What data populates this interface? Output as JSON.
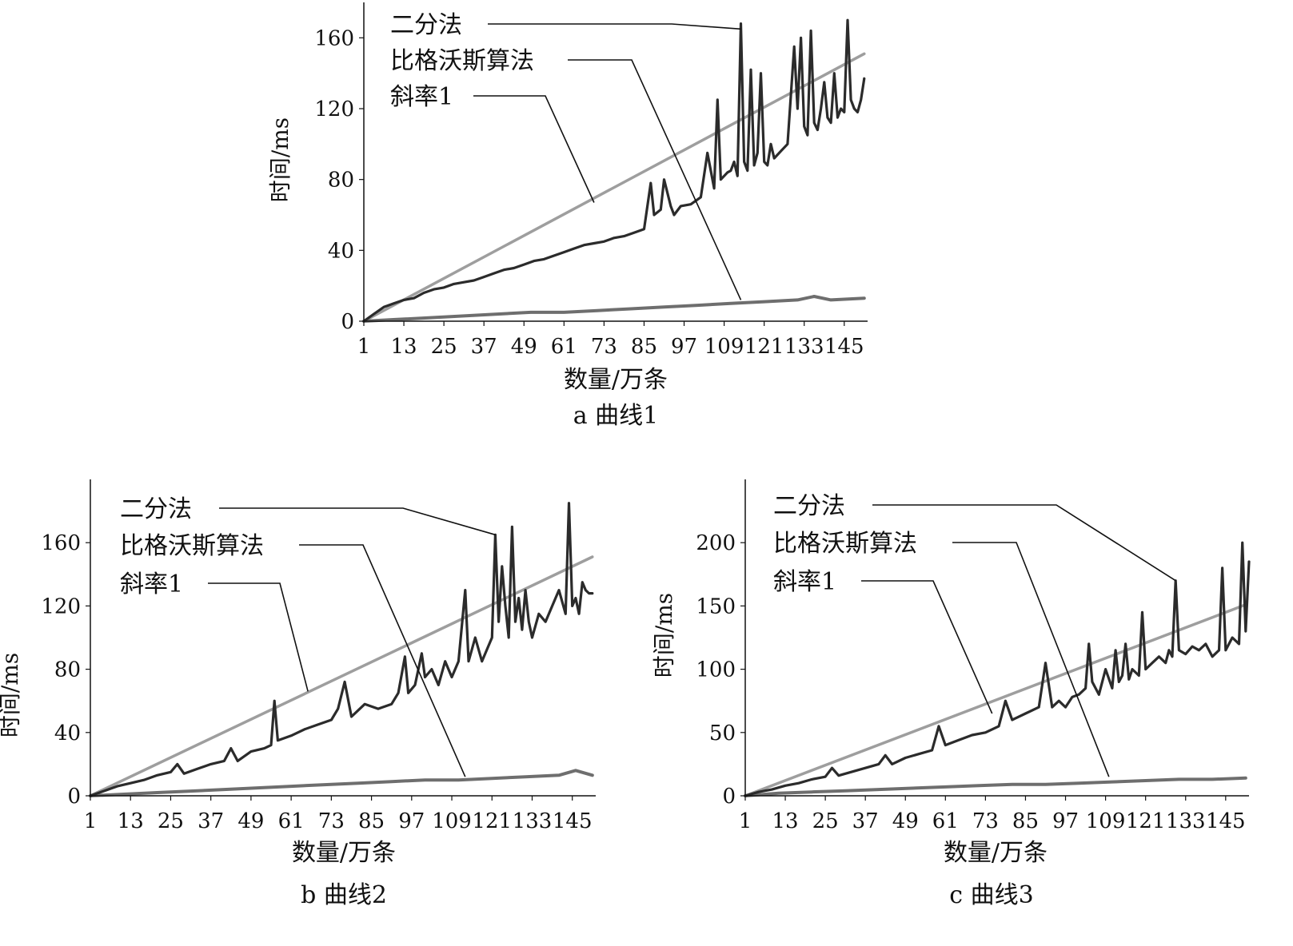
{
  "chart_data": [
    {
      "type": "line",
      "caption": "a 曲线1",
      "xlabel": "数量/万条",
      "ylabel": "时间/ms",
      "xlim": [
        1,
        152
      ],
      "ylim": [
        0,
        180
      ],
      "xticks": [
        1,
        13,
        25,
        37,
        49,
        61,
        73,
        85,
        97,
        109,
        121,
        133,
        145
      ],
      "yticks": [
        0,
        40,
        80,
        120,
        160
      ],
      "grid": false,
      "legend": "callout labels, top-left",
      "legend_entries": [
        {
          "label": "二分法",
          "target": [
            114,
            165
          ]
        },
        {
          "label": "比格沃斯算法",
          "target": [
            114,
            12
          ]
        },
        {
          "label": "斜率1",
          "target": [
            70,
            67
          ]
        }
      ],
      "series": [
        {
          "name": "二分法",
          "color": "#2b2b2b",
          "width": 3.2,
          "x": [
            1,
            4,
            7,
            10,
            13,
            16,
            19,
            22,
            25,
            28,
            31,
            34,
            37,
            40,
            43,
            46,
            49,
            52,
            55,
            58,
            61,
            64,
            67,
            70,
            73,
            76,
            79,
            82,
            85,
            87,
            88,
            90,
            91,
            93,
            94,
            96,
            99,
            102,
            104,
            106,
            107,
            108,
            110,
            111,
            112,
            113,
            114,
            115,
            116,
            117,
            118,
            119,
            120,
            121,
            122,
            123,
            124,
            126,
            128,
            130,
            131,
            132,
            133,
            134,
            135,
            136,
            137,
            138,
            139,
            140,
            141,
            142,
            143,
            144,
            145,
            146,
            147,
            148,
            149,
            150,
            151
          ],
          "y": [
            0,
            4,
            8,
            10,
            12,
            13,
            16,
            18,
            19,
            21,
            22,
            23,
            25,
            27,
            29,
            30,
            32,
            34,
            35,
            37,
            39,
            41,
            43,
            44,
            45,
            47,
            48,
            50,
            52,
            78,
            60,
            63,
            80,
            65,
            60,
            65,
            66,
            70,
            95,
            75,
            125,
            80,
            84,
            85,
            90,
            82,
            168,
            90,
            85,
            142,
            88,
            95,
            140,
            90,
            88,
            100,
            92,
            96,
            100,
            155,
            120,
            160,
            110,
            105,
            164,
            112,
            108,
            120,
            135,
            115,
            112,
            140,
            115,
            120,
            118,
            170,
            125,
            120,
            118,
            125,
            137
          ]
        },
        {
          "name": "比格沃斯算法",
          "color": "#6e6e6e",
          "width": 4,
          "x": [
            1,
            11,
            21,
            31,
            41,
            51,
            61,
            71,
            81,
            91,
            101,
            111,
            121,
            131,
            136,
            141,
            151
          ],
          "y": [
            0,
            1,
            2,
            3,
            4,
            5,
            5,
            6,
            7,
            8,
            9,
            10,
            11,
            12,
            14,
            12,
            13
          ]
        },
        {
          "name": "斜率1",
          "color": "#9e9e9e",
          "width": 3.5,
          "x": [
            1,
            151
          ],
          "y": [
            0,
            151
          ]
        }
      ]
    },
    {
      "type": "line",
      "caption": "b 曲线2",
      "xlabel": "数量/万条",
      "ylabel": "时间/ms",
      "xlim": [
        1,
        152
      ],
      "ylim": [
        0,
        200
      ],
      "xticks": [
        1,
        13,
        25,
        37,
        49,
        61,
        73,
        85,
        97,
        109,
        121,
        133,
        145
      ],
      "yticks": [
        0,
        40,
        80,
        120,
        160
      ],
      "grid": false,
      "legend": "callout labels, top-left",
      "legend_entries": [
        {
          "label": "二分法",
          "target": [
            122,
            165
          ]
        },
        {
          "label": "比格沃斯算法",
          "target": [
            113,
            12
          ]
        },
        {
          "label": "斜率1",
          "target": [
            66,
            66
          ]
        }
      ],
      "series": [
        {
          "name": "二分法",
          "color": "#2b2b2b",
          "width": 3.2,
          "x": [
            1,
            5,
            9,
            13,
            17,
            21,
            25,
            27,
            29,
            33,
            37,
            41,
            43,
            45,
            49,
            53,
            55,
            56,
            57,
            61,
            65,
            69,
            73,
            75,
            77,
            79,
            83,
            87,
            91,
            93,
            95,
            96,
            98,
            100,
            101,
            103,
            105,
            107,
            109,
            111,
            113,
            114,
            116,
            118,
            120,
            121,
            122,
            123,
            124,
            125,
            126,
            127,
            128,
            129,
            130,
            131,
            132,
            133,
            135,
            137,
            139,
            141,
            143,
            144,
            145,
            146,
            147,
            148,
            149,
            150,
            151
          ],
          "y": [
            0,
            3,
            6,
            8,
            10,
            13,
            15,
            20,
            14,
            17,
            20,
            22,
            30,
            22,
            28,
            30,
            32,
            60,
            35,
            38,
            42,
            45,
            48,
            55,
            72,
            50,
            58,
            55,
            58,
            65,
            88,
            65,
            70,
            90,
            75,
            80,
            70,
            85,
            75,
            85,
            130,
            85,
            100,
            85,
            95,
            100,
            165,
            110,
            145,
            120,
            100,
            170,
            110,
            125,
            105,
            130,
            110,
            100,
            115,
            110,
            120,
            130,
            115,
            185,
            120,
            125,
            115,
            135,
            130,
            128,
            128
          ]
        },
        {
          "name": "比格沃斯算法",
          "color": "#6e6e6e",
          "width": 4,
          "x": [
            1,
            11,
            21,
            31,
            41,
            51,
            61,
            71,
            81,
            91,
            101,
            111,
            121,
            131,
            141,
            146,
            151
          ],
          "y": [
            0,
            1,
            2,
            3,
            4,
            5,
            6,
            7,
            8,
            9,
            10,
            10,
            11,
            12,
            13,
            16,
            13
          ]
        },
        {
          "name": "斜率1",
          "color": "#9e9e9e",
          "width": 3.5,
          "x": [
            1,
            151
          ],
          "y": [
            0,
            151
          ]
        }
      ]
    },
    {
      "type": "line",
      "caption": "c 曲线3",
      "xlabel": "数量/万条",
      "ylabel": "时间/ms",
      "xlim": [
        1,
        152
      ],
      "ylim": [
        0,
        250
      ],
      "xticks": [
        1,
        13,
        25,
        37,
        49,
        61,
        73,
        85,
        97,
        109,
        121,
        133,
        145
      ],
      "yticks": [
        0,
        50,
        100,
        150,
        200
      ],
      "grid": false,
      "legend": "callout labels, top-left",
      "legend_entries": [
        {
          "label": "二分法",
          "target": [
            130,
            170
          ]
        },
        {
          "label": "比格沃斯算法",
          "target": [
            110,
            15
          ]
        },
        {
          "label": "斜率1",
          "target": [
            75,
            65
          ]
        }
      ],
      "series": [
        {
          "name": "二分法",
          "color": "#2b2b2b",
          "width": 3.2,
          "x": [
            1,
            5,
            9,
            13,
            17,
            21,
            25,
            27,
            29,
            33,
            37,
            41,
            43,
            45,
            49,
            53,
            57,
            59,
            61,
            65,
            69,
            73,
            77,
            79,
            81,
            85,
            89,
            91,
            93,
            95,
            97,
            99,
            101,
            103,
            104,
            105,
            107,
            109,
            111,
            112,
            113,
            114,
            115,
            116,
            117,
            119,
            120,
            121,
            123,
            125,
            127,
            128,
            129,
            130,
            131,
            133,
            135,
            137,
            139,
            141,
            143,
            144,
            145,
            147,
            149,
            150,
            151,
            152
          ],
          "y": [
            0,
            3,
            5,
            8,
            10,
            13,
            15,
            22,
            16,
            19,
            22,
            25,
            32,
            25,
            30,
            33,
            36,
            55,
            40,
            44,
            48,
            50,
            55,
            75,
            60,
            65,
            70,
            105,
            70,
            75,
            70,
            78,
            80,
            85,
            120,
            90,
            80,
            100,
            85,
            115,
            90,
            95,
            120,
            92,
            100,
            95,
            145,
            100,
            105,
            110,
            105,
            115,
            110,
            170,
            115,
            112,
            118,
            115,
            120,
            110,
            115,
            180,
            115,
            125,
            120,
            200,
            130,
            185
          ]
        },
        {
          "name": "比格沃斯算法",
          "color": "#6e6e6e",
          "width": 4,
          "x": [
            1,
            11,
            21,
            31,
            41,
            51,
            61,
            71,
            81,
            91,
            101,
            111,
            121,
            131,
            141,
            151
          ],
          "y": [
            0,
            2,
            3,
            4,
            5,
            6,
            7,
            8,
            9,
            9,
            10,
            11,
            12,
            13,
            13,
            14
          ]
        },
        {
          "name": "斜率1",
          "color": "#9e9e9e",
          "width": 3.5,
          "x": [
            1,
            151
          ],
          "y": [
            0,
            151
          ]
        }
      ]
    }
  ]
}
